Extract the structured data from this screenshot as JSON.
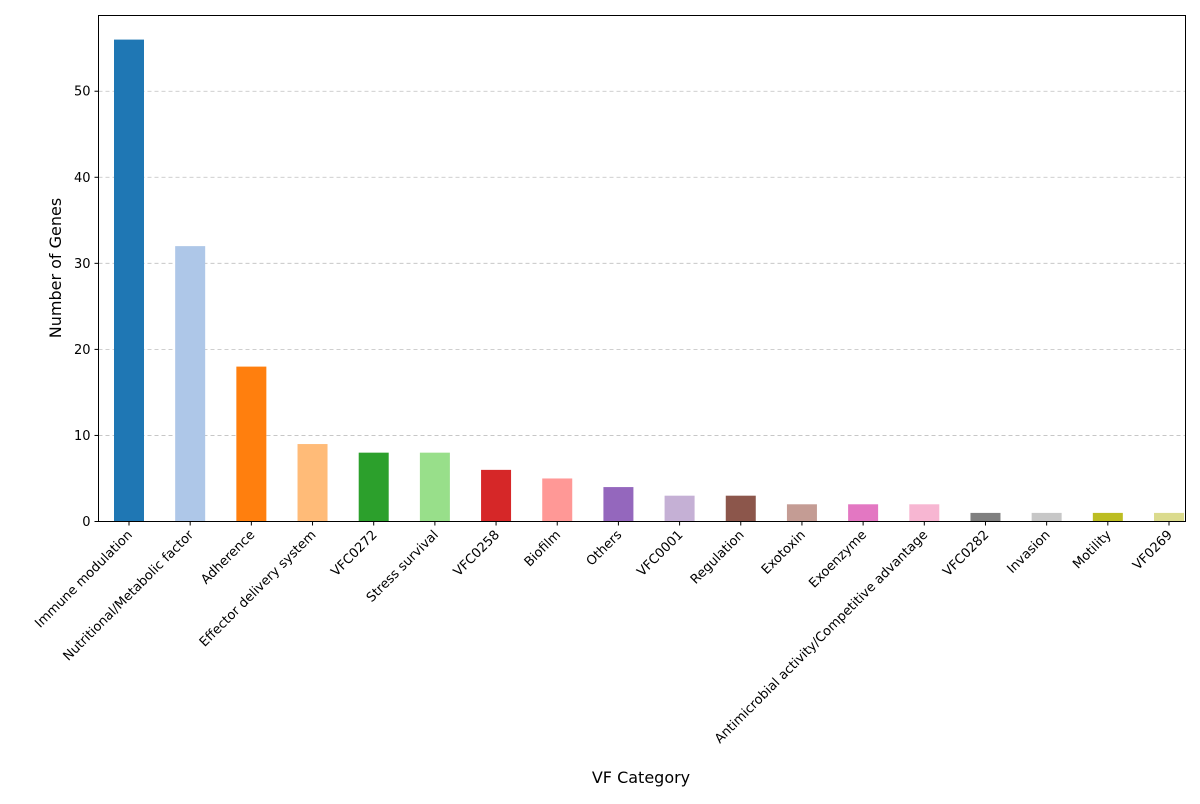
{
  "chart_data": {
    "type": "bar",
    "title": "",
    "xlabel": "VF Category",
    "ylabel": "Number of Genes",
    "ylim": [
      0,
      58.8
    ],
    "yticks": [
      0,
      10,
      20,
      30,
      40,
      50
    ],
    "grid": "y-dashed",
    "categories": [
      "Immune modulation",
      "Nutritional/Metabolic factor",
      "Adherence",
      "Effector delivery system",
      "VFC0272",
      "Stress survival",
      "VFC0258",
      "Biofilm",
      "Others",
      "VFC0001",
      "Regulation",
      "Exotoxin",
      "Exoenzyme",
      "Antimicrobial activity/Competitive advantage",
      "VFC0282",
      "Invasion",
      "Motility",
      "VF0269"
    ],
    "values": [
      56,
      32,
      18,
      9,
      8,
      8,
      6,
      5,
      4,
      3,
      3,
      2,
      2,
      2,
      1,
      1,
      1,
      1
    ],
    "colors": [
      "#1f77b4",
      "#aec7e8",
      "#ff7f0e",
      "#ffbb78",
      "#2ca02c",
      "#98df8a",
      "#d62728",
      "#ff9896",
      "#9467bd",
      "#c5b0d5",
      "#8c564b",
      "#c49c94",
      "#e377c2",
      "#f7b6d2",
      "#7f7f7f",
      "#c7c7c7",
      "#bcbd22",
      "#dbdb8d"
    ]
  }
}
